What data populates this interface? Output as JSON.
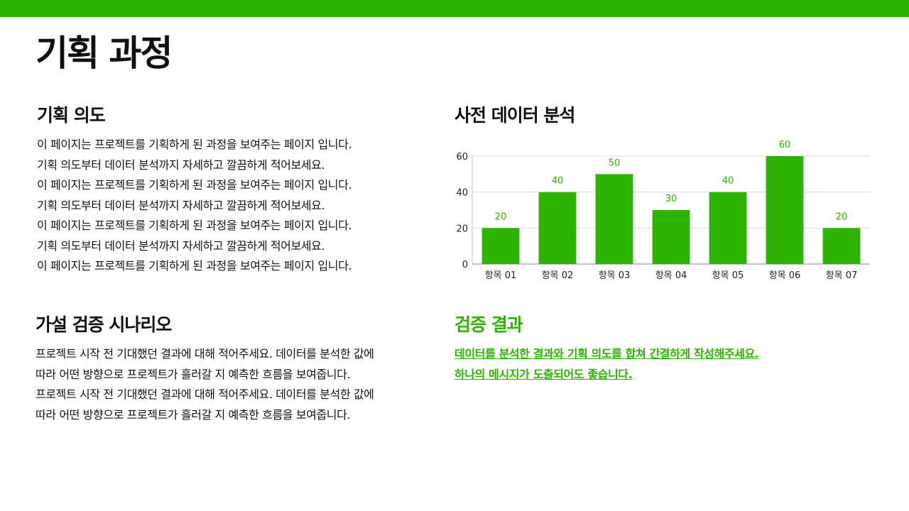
{
  "page": {
    "title": "기획 과정"
  },
  "colors": {
    "accent": "#2db400",
    "text": "#111111",
    "grid": "#d9d9d9"
  },
  "intent": {
    "heading": "기획 의도",
    "lines": [
      "이 페이지는 프로젝트를 기획하게 된 과정을 보여주는 페이지 입니다.",
      "기획 의도부터 데이터 분석까지 자세하고 깔끔하게 적어보세요.",
      "이 페이지는 프로젝트를 기획하게 된 과정을 보여주는 페이지 입니다.",
      "기획 의도부터 데이터 분석까지 자세하고 깔끔하게 적어보세요.",
      "이 페이지는 프로젝트를 기획하게 된 과정을 보여주는 페이지 입니다.",
      "기획 의도부터 데이터 분석까지 자세하고 깔끔하게 적어보세요.",
      "이 페이지는 프로젝트를 기획하게 된 과정을 보여주는 페이지 입니다."
    ]
  },
  "hypothesis": {
    "heading": "가설 검증 시나리오",
    "lines": [
      "프로젝트 시작 전 기대했던 결과에 대해 적어주세요. 데이터를 분석한 값에",
      "따라 어떤 방향으로 프로젝트가 흘러갈 지 예측한 흐름을 보여줍니다.",
      "프로젝트 시작 전 기대했던 결과에 대해 적어주세요. 데이터를 분석한 값에",
      "따라 어떤 방향으로 프로젝트가 흘러갈 지 예측한 흐름을 보여줍니다."
    ]
  },
  "analysis": {
    "heading": "사전 데이터 분석"
  },
  "result": {
    "heading": "검증 결과",
    "lines": [
      "데이터를 분석한 결과와 기획 의도를 합쳐 간결하게 작성해주세요.",
      "하나의 메시지가 도출되어도 좋습니다."
    ]
  },
  "chart_data": {
    "type": "bar",
    "categories": [
      "항목 01",
      "항목 02",
      "항목 03",
      "항목 04",
      "항목 05",
      "항목 06",
      "항목 07"
    ],
    "values": [
      20,
      40,
      50,
      30,
      40,
      60,
      20
    ],
    "yticks": [
      0,
      20,
      40,
      60
    ],
    "ylim": [
      0,
      60
    ],
    "grid": true,
    "data_labels": true,
    "bar_color": "#2db400"
  }
}
